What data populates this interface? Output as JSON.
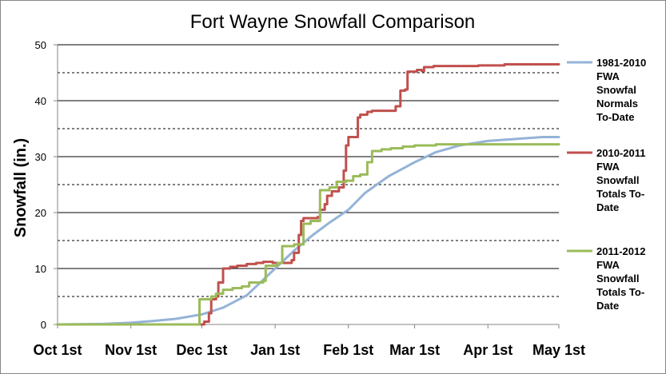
{
  "chart_data": {
    "type": "line",
    "title": "Fort Wayne Snowfall Comparison",
    "xlabel": "",
    "ylabel": "Snowfall (in.)",
    "ylim": [
      0,
      50
    ],
    "yticks": [
      0,
      10,
      20,
      30,
      40,
      50
    ],
    "major_gridlines": [
      10,
      20,
      30,
      40,
      50
    ],
    "minor_gridlines_dashed": [
      5,
      15,
      25,
      35,
      45
    ],
    "x_domain": [
      "Oct 1st",
      "May 1st"
    ],
    "x_tick_labels": [
      "Oct 1st",
      "Nov 1st",
      "Dec 1st",
      "Jan 1st",
      "Feb 1st",
      "Mar 1st",
      "Apr 1st",
      "May 1st"
    ],
    "x_tick_days": [
      0,
      31,
      61,
      92,
      123,
      151,
      182,
      212
    ],
    "legend_position": "right",
    "series": [
      {
        "name": "1981-2010 FWA Snowfal Normals To-Date",
        "legend_lines": [
          "1981-2010",
          "FWA",
          "Snowfal",
          "Normals",
          "To-Date"
        ],
        "color": "#95b3d7",
        "step": false,
        "points": [
          [
            0,
            0
          ],
          [
            20,
            0.1
          ],
          [
            31,
            0.3
          ],
          [
            40,
            0.6
          ],
          [
            50,
            1.0
          ],
          [
            61,
            1.8
          ],
          [
            70,
            3.0
          ],
          [
            80,
            5.2
          ],
          [
            92,
            10.0
          ],
          [
            100,
            13.2
          ],
          [
            108,
            16.0
          ],
          [
            115,
            18.2
          ],
          [
            123,
            20.5
          ],
          [
            130,
            23.5
          ],
          [
            140,
            26.5
          ],
          [
            151,
            29.0
          ],
          [
            160,
            30.8
          ],
          [
            170,
            32.0
          ],
          [
            182,
            32.8
          ],
          [
            195,
            33.2
          ],
          [
            205,
            33.5
          ],
          [
            212,
            33.5
          ]
        ]
      },
      {
        "name": "2010-2011 FWA Snowfall Totals To-Date",
        "legend_lines": [
          "2010-2011",
          "FWA",
          "Snowfall",
          "Totals To-",
          "Date"
        ],
        "color": "#c0504d",
        "step": true,
        "points": [
          [
            0,
            0
          ],
          [
            61,
            0
          ],
          [
            62,
            0.5
          ],
          [
            63,
            0.5
          ],
          [
            64,
            2.0
          ],
          [
            65,
            4.5
          ],
          [
            67,
            5.0
          ],
          [
            68,
            7.5
          ],
          [
            70,
            10.0
          ],
          [
            73,
            10.3
          ],
          [
            76,
            10.5
          ],
          [
            80,
            10.8
          ],
          [
            84,
            11.0
          ],
          [
            87,
            11.2
          ],
          [
            91,
            11.0
          ],
          [
            99,
            11.5
          ],
          [
            100,
            12.8
          ],
          [
            101,
            12.8
          ],
          [
            102,
            16.0
          ],
          [
            103,
            18.5
          ],
          [
            104,
            19.0
          ],
          [
            110,
            19.2
          ],
          [
            111,
            20.5
          ],
          [
            113,
            21.5
          ],
          [
            114,
            23.0
          ],
          [
            116,
            23.8
          ],
          [
            118,
            23.8
          ],
          [
            119,
            24.5
          ],
          [
            121,
            27.5
          ],
          [
            122,
            32.0
          ],
          [
            123,
            33.5
          ],
          [
            127,
            37.0
          ],
          [
            128,
            37.5
          ],
          [
            131,
            38.0
          ],
          [
            133,
            38.2
          ],
          [
            142,
            38.2
          ],
          [
            143,
            39.0
          ],
          [
            145,
            41.8
          ],
          [
            147,
            42.0
          ],
          [
            148,
            45.2
          ],
          [
            152,
            45.5
          ],
          [
            154,
            45.3
          ],
          [
            155,
            46.0
          ],
          [
            159,
            46.2
          ],
          [
            178,
            46.3
          ],
          [
            189,
            46.5
          ],
          [
            212,
            46.5
          ]
        ]
      },
      {
        "name": "2011-2012 FWA Snowfall Totals To-Date",
        "legend_lines": [
          "2011-2012",
          "FWA",
          "Snowfall",
          "Totals To-",
          "Date"
        ],
        "color": "#9bbb59",
        "step": true,
        "points": [
          [
            0,
            0
          ],
          [
            59,
            0
          ],
          [
            60,
            4.5
          ],
          [
            65,
            5.0
          ],
          [
            67,
            5.5
          ],
          [
            70,
            6.2
          ],
          [
            74,
            6.5
          ],
          [
            78,
            6.8
          ],
          [
            81,
            7.5
          ],
          [
            87,
            7.8
          ],
          [
            88,
            10.5
          ],
          [
            93,
            11.0
          ],
          [
            95,
            14.0
          ],
          [
            100,
            14.3
          ],
          [
            104,
            18.0
          ],
          [
            107,
            18.5
          ],
          [
            111,
            24.0
          ],
          [
            115,
            24.5
          ],
          [
            118,
            25.5
          ],
          [
            122,
            25.7
          ],
          [
            125,
            26.5
          ],
          [
            128,
            26.8
          ],
          [
            131,
            29.0
          ],
          [
            133,
            31.0
          ],
          [
            137,
            31.3
          ],
          [
            141,
            31.5
          ],
          [
            146,
            31.8
          ],
          [
            151,
            32.0
          ],
          [
            160,
            32.2
          ],
          [
            212,
            32.2
          ]
        ]
      }
    ]
  }
}
